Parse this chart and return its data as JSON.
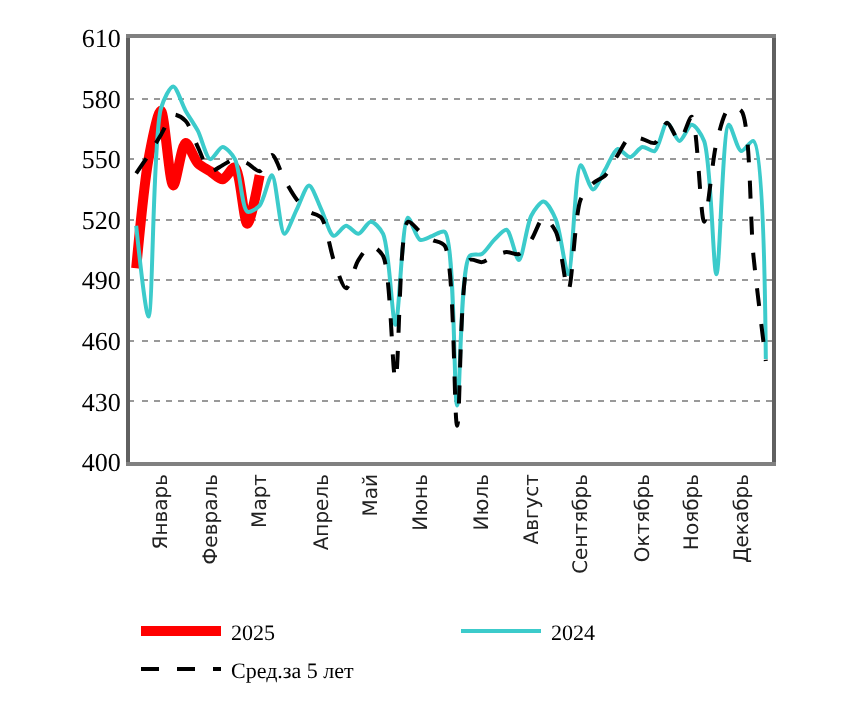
{
  "chart_data": {
    "type": "line",
    "categories": [
      null,
      null,
      "Январь",
      null,
      null,
      null,
      "Февраль",
      null,
      null,
      null,
      "Март",
      null,
      null,
      null,
      null,
      "Апрель",
      null,
      null,
      null,
      "Май",
      null,
      null,
      null,
      "Июнь",
      null,
      null,
      null,
      null,
      "Июль",
      null,
      null,
      null,
      "Август",
      null,
      null,
      null,
      "Сентябрь",
      null,
      null,
      null,
      null,
      "Октябрь",
      null,
      null,
      null,
      "Ноябрь",
      null,
      null,
      null,
      "Декабрь",
      null,
      null
    ],
    "ylim": [
      400,
      610
    ],
    "yticks": [
      400,
      430,
      460,
      490,
      520,
      550,
      580,
      610
    ],
    "grid": "y",
    "legend": "bottom",
    "series": [
      {
        "name": "2025",
        "color": "#ff0000",
        "line_style": "solid",
        "values": [
          496,
          550,
          574,
          537,
          558,
          548,
          544,
          540,
          546,
          518,
          542,
          null,
          null,
          null,
          null,
          null,
          null,
          null,
          null,
          null,
          null,
          null,
          null,
          null,
          null,
          null,
          null,
          null,
          null,
          null,
          null,
          null,
          null,
          null,
          null,
          null,
          null,
          null,
          null,
          null,
          null,
          null,
          null,
          null,
          null,
          null,
          null,
          null,
          null,
          null,
          null,
          null
        ]
      },
      {
        "name": "2024",
        "color": "#3ccbcb",
        "line_style": "solid",
        "values": [
          517,
          472,
          575,
          586,
          574,
          564,
          550,
          556,
          550,
          524,
          527,
          542,
          513,
          525,
          537,
          525,
          512,
          517,
          513,
          519,
          513,
          468,
          521,
          510,
          512,
          514,
          428,
          502,
          503,
          510,
          515,
          500,
          522,
          529,
          520,
          493,
          547,
          535,
          545,
          555,
          551,
          556,
          554,
          568,
          559,
          567,
          559,
          493,
          567,
          554,
          559,
          451
        ]
      },
      {
        "name": "Сред.за 5 лет",
        "color": "#000000",
        "line_style": "dashed",
        "values": [
          543,
          552,
          562,
          572,
          569,
          556,
          544,
          547,
          550,
          548,
          544,
          552,
          540,
          530,
          524,
          521,
          500,
          486,
          500,
          507,
          502,
          441,
          519,
          514,
          510,
          507,
          418,
          500,
          499,
          502,
          504,
          503,
          510,
          521,
          514,
          485,
          530,
          538,
          542,
          552,
          561,
          560,
          558,
          568,
          559,
          571,
          519,
          558,
          575,
          574,
          502,
          450
        ]
      }
    ]
  }
}
